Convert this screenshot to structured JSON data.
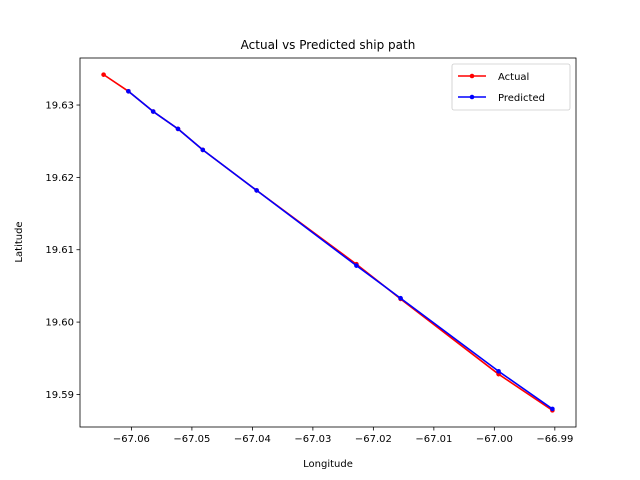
{
  "chart_data": {
    "type": "line",
    "title": "Actual vs Predicted ship path",
    "xlabel": "Longitude",
    "ylabel": "Latitude",
    "xlim": [
      -67.0685,
      -66.9865
    ],
    "ylim": [
      19.5855,
      19.6365
    ],
    "xticks": [
      -67.06,
      -67.05,
      -67.04,
      -67.03,
      -67.02,
      -67.01,
      -67.0,
      -66.99
    ],
    "xtick_labels": [
      "−67.06",
      "−67.05",
      "−67.04",
      "−67.03",
      "−67.02",
      "−67.01",
      "−67.00",
      "−66.99"
    ],
    "yticks": [
      19.59,
      19.6,
      19.61,
      19.62,
      19.63
    ],
    "ytick_labels": [
      "19.59",
      "19.60",
      "19.61",
      "19.62",
      "19.63"
    ],
    "grid": false,
    "legend_position": "top-right",
    "series": [
      {
        "name": "Actual",
        "color": "#ff0000",
        "x": [
          -67.0646,
          -67.0605,
          -67.0564,
          -67.0523,
          -67.0482,
          -67.0393,
          -67.0228,
          -67.0155,
          -66.9993,
          -66.9904
        ],
        "y": [
          19.6342,
          19.6319,
          19.6291,
          19.6267,
          19.6238,
          19.6182,
          19.608,
          19.6032,
          19.5928,
          19.5878
        ]
      },
      {
        "name": "Predicted",
        "color": "#0000ff",
        "x": [
          -67.0605,
          -67.0564,
          -67.0523,
          -67.0482,
          -67.0393,
          -67.0228,
          -67.0155,
          -66.9993,
          -66.9904
        ],
        "y": [
          19.6319,
          19.6291,
          19.6267,
          19.6238,
          19.6182,
          19.6078,
          19.6033,
          19.5932,
          19.588
        ]
      }
    ]
  }
}
